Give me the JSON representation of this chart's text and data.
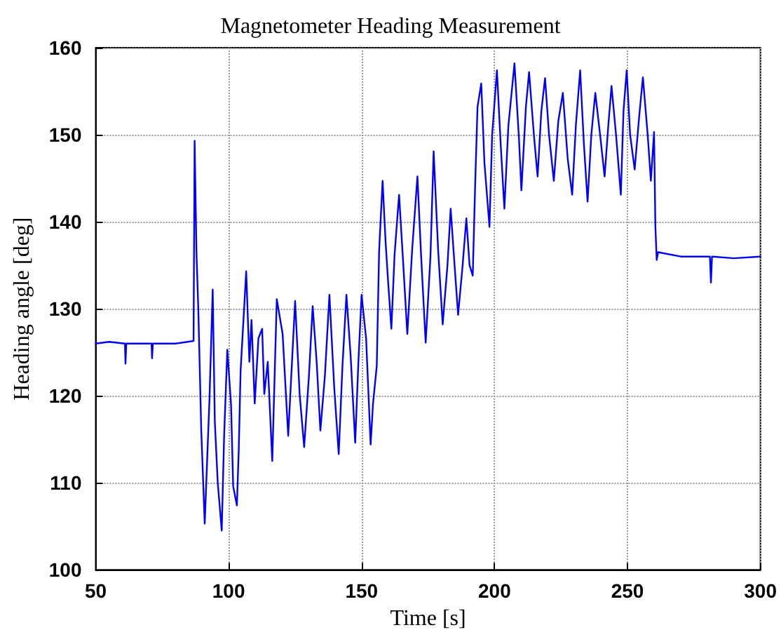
{
  "chart_data": {
    "type": "line",
    "title": "Magnetometer Heading Measurement",
    "xlabel": "Time [s]",
    "ylabel": "Heading angle [deg]",
    "x": [
      50,
      55,
      61,
      61.2,
      61.5,
      71,
      71.2,
      71.5,
      80,
      86.8,
      87.2,
      87.9,
      88.6,
      89.7,
      91,
      92.8,
      94,
      94.8,
      95.9,
      97.4,
      98.3,
      99.5,
      100.9,
      101.7,
      103.1,
      103.8,
      104.5,
      106.6,
      107.8,
      108.6,
      109.8,
      111.2,
      112.6,
      113.4,
      114.7,
      116.4,
      118.1,
      120.3,
      122.4,
      125,
      126.7,
      128.4,
      130.2,
      131.6,
      133.1,
      134.5,
      136.2,
      137.9,
      139.7,
      141.4,
      142.8,
      144.3,
      145.9,
      147.6,
      148.8,
      150,
      151.7,
      153.4,
      154.3,
      155.7,
      156.6,
      157.9,
      159,
      160,
      161.2,
      162.4,
      164.1,
      165.5,
      167.2,
      169,
      171,
      172.4,
      174.1,
      175.9,
      177.1,
      178.8,
      180.5,
      182.3,
      183.5,
      185.2,
      186.3,
      188,
      189.4,
      190.6,
      191.8,
      192.7,
      193.6,
      195,
      196.2,
      198.1,
      199.1,
      200.9,
      202.3,
      203.7,
      205.2,
      207.5,
      209.2,
      210.1,
      211.8,
      213,
      214.8,
      216.2,
      217.6,
      219,
      220.5,
      222.3,
      224,
      225.7,
      227.5,
      229.2,
      230.6,
      232.2,
      233.6,
      235,
      236.4,
      237.9,
      239.7,
      241.4,
      242.8,
      244,
      245.7,
      247.5,
      248.5,
      249.7,
      251,
      252.7,
      254.4,
      255.8,
      257.6,
      258.8,
      260,
      260.5,
      261,
      261.5,
      270,
      281,
      281.4,
      281.8,
      290,
      300
    ],
    "series": [
      {
        "color": "#0000ff",
        "values": [
          126,
          126.2,
          126,
          123.7,
          126,
          126,
          124.3,
          126,
          126,
          126.3,
          149.3,
          136.4,
          129.8,
          116,
          105.3,
          119.7,
          132.2,
          117,
          110,
          104.5,
          115.4,
          125.3,
          119,
          109.6,
          107.4,
          113.8,
          122.9,
          134.3,
          123.9,
          128.7,
          119.1,
          126.6,
          127.7,
          120.2,
          123.9,
          112.5,
          131.1,
          127.1,
          115.4,
          130.9,
          120.2,
          114.1,
          122.3,
          130.3,
          123.9,
          116,
          122.3,
          131.6,
          121,
          113.3,
          123.4,
          131.6,
          124.5,
          114.6,
          123.9,
          131.6,
          126.6,
          114.4,
          119.1,
          123.4,
          136.7,
          144.7,
          137.8,
          133,
          127.7,
          136.2,
          143.1,
          136,
          127.1,
          136.7,
          145.2,
          136,
          126.1,
          136,
          148.1,
          136.7,
          128.2,
          135,
          141.5,
          134,
          129.3,
          135,
          140.4,
          135,
          133.8,
          144.1,
          153.2,
          155.9,
          146.8,
          139.4,
          150,
          157.4,
          149,
          141.5,
          151,
          158.2,
          149.5,
          143.6,
          153.2,
          157.2,
          150,
          145.2,
          152.7,
          156.5,
          150,
          144.7,
          151.6,
          154.8,
          147.3,
          143.1,
          151.1,
          157.4,
          149,
          142.3,
          150,
          154.8,
          150,
          145.2,
          151.1,
          155.6,
          150,
          143.1,
          152.7,
          157.4,
          150,
          146,
          152.1,
          156.6,
          150,
          144.7,
          150.3,
          139.4,
          135.6,
          136.5,
          136,
          136,
          133,
          136,
          135.8,
          136
        ]
      }
    ],
    "xlim": [
      50,
      300
    ],
    "ylim": [
      100,
      160
    ],
    "xticks": [
      50,
      100,
      150,
      200,
      250,
      300
    ],
    "yticks": [
      100,
      110,
      120,
      130,
      140,
      150,
      160
    ],
    "grid": true,
    "marker": "none",
    "line_style": "solid"
  }
}
